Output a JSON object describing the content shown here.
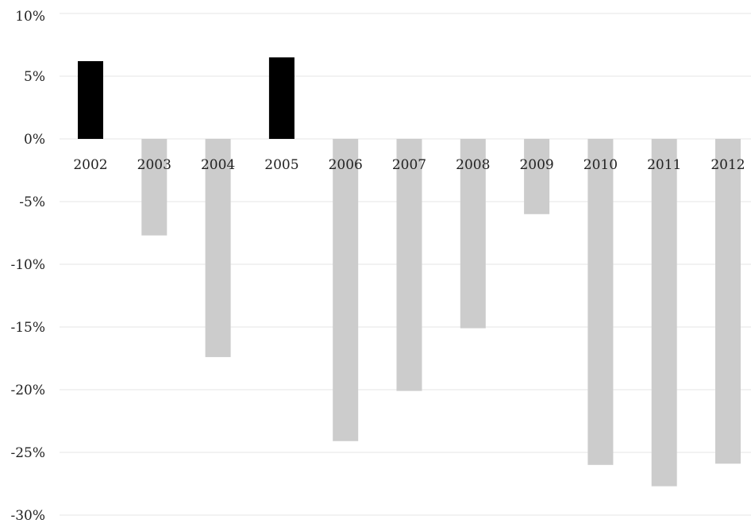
{
  "chart_data": {
    "type": "bar",
    "title": "",
    "xlabel": "",
    "ylabel": "",
    "categories": [
      "2002",
      "2003",
      "2004",
      "2005",
      "2006",
      "2007",
      "2008",
      "2009",
      "2010",
      "2011",
      "2012"
    ],
    "values": [
      6.2,
      -7.7,
      -17.4,
      6.5,
      -24.1,
      -20.1,
      -15.1,
      -6.0,
      -26.0,
      -27.7,
      -25.9
    ],
    "ylim": [
      -30,
      10
    ],
    "yticks": [
      10,
      5,
      0,
      -5,
      -10,
      -15,
      -20,
      -25,
      -30
    ],
    "ytick_labels": [
      "10%",
      "5%",
      "0%",
      "-5%",
      "-10%",
      "-15%",
      "-20%",
      "-25%",
      "-30%"
    ],
    "grid": true,
    "legend": "none",
    "colors": {
      "positive": "#000000",
      "negative": "#cccccc",
      "grid": "#e6e6e6"
    }
  }
}
